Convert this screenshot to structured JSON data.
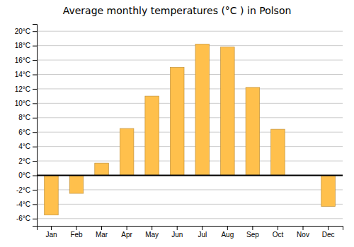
{
  "chart_data": {
    "type": "bar",
    "title": "Average monthly temperatures (°C ) in Polson",
    "categories": [
      "Jan",
      "Feb",
      "Mar",
      "Apr",
      "May",
      "Jun",
      "Jul",
      "Aug",
      "Sep",
      "Oct",
      "Nov",
      "Dec"
    ],
    "values": [
      -5.5,
      -2.5,
      1.7,
      6.5,
      11.0,
      15.0,
      18.2,
      17.8,
      12.2,
      6.4,
      0.0,
      -4.3
    ],
    "color": "#FFC04C",
    "ylim": [
      -7,
      21
    ],
    "yticks": [
      {
        "value": -6,
        "label": "-6°C"
      },
      {
        "value": -4,
        "label": "-4°C"
      },
      {
        "value": -2,
        "label": "-2°C"
      },
      {
        "value": 0,
        "label": "0°C"
      },
      {
        "value": 2,
        "label": "2°C"
      },
      {
        "value": 4,
        "label": "4°C"
      },
      {
        "value": 6,
        "label": "6°C"
      },
      {
        "value": 8,
        "label": "8°C"
      },
      {
        "value": 10,
        "label": "10°C"
      },
      {
        "value": 12,
        "label": "12°C"
      },
      {
        "value": 14,
        "label": "14°C"
      },
      {
        "value": 16,
        "label": "16°C"
      },
      {
        "value": 18,
        "label": "18°C"
      },
      {
        "value": 20,
        "label": "20°C"
      }
    ],
    "grid": true
  }
}
